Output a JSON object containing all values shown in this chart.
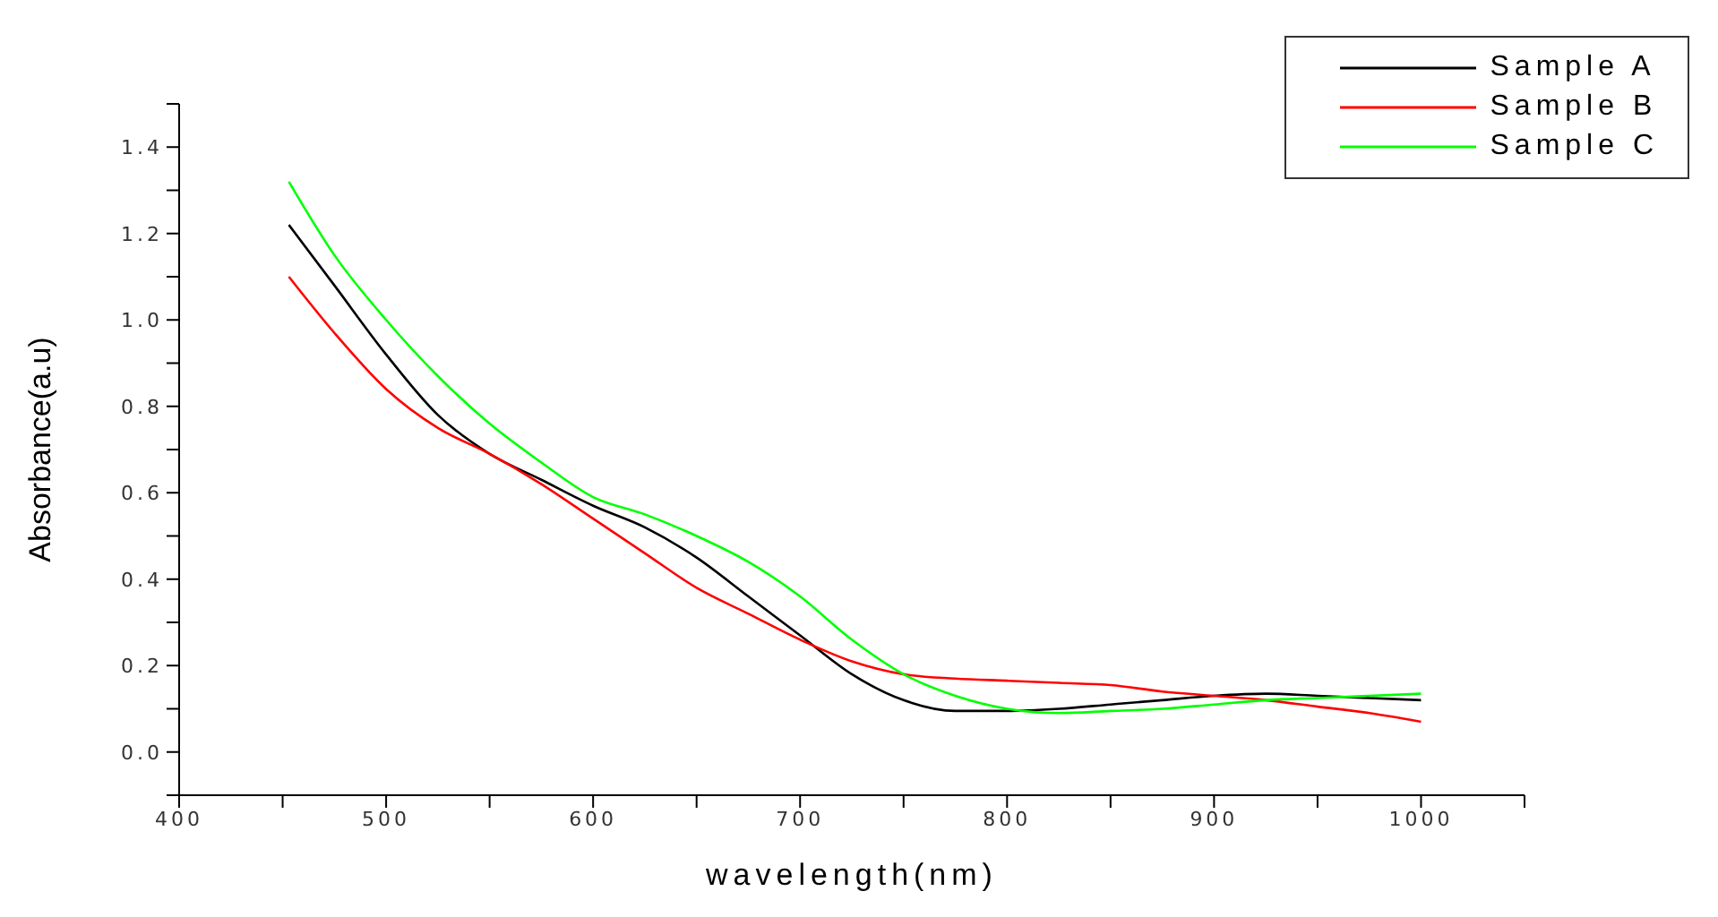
{
  "chart_data": {
    "type": "line",
    "xlabel": "wavelength(nm)",
    "ylabel": "Absorbance(a.u)",
    "x": [
      453,
      475,
      500,
      525,
      550,
      575,
      600,
      625,
      650,
      675,
      700,
      725,
      750,
      775,
      800,
      825,
      850,
      875,
      900,
      925,
      950,
      975,
      1000
    ],
    "series": [
      {
        "name": "Sample A",
        "color": "#000000",
        "values": [
          1.22,
          1.08,
          0.92,
          0.78,
          0.69,
          0.63,
          0.57,
          0.52,
          0.45,
          0.36,
          0.27,
          0.18,
          0.12,
          0.095,
          0.095,
          0.1,
          0.11,
          0.12,
          0.13,
          0.135,
          0.13,
          0.125,
          0.12
        ]
      },
      {
        "name": "Sample B",
        "color": "#ff0000",
        "values": [
          1.1,
          0.97,
          0.84,
          0.75,
          0.69,
          0.62,
          0.54,
          0.46,
          0.38,
          0.32,
          0.26,
          0.21,
          0.18,
          0.17,
          0.165,
          0.16,
          0.155,
          0.14,
          0.13,
          0.12,
          0.105,
          0.09,
          0.07
        ]
      },
      {
        "name": "Sample C",
        "color": "#00ff00",
        "values": [
          1.32,
          1.15,
          1.0,
          0.87,
          0.76,
          0.67,
          0.59,
          0.55,
          0.5,
          0.44,
          0.36,
          0.26,
          0.18,
          0.13,
          0.1,
          0.09,
          0.095,
          0.1,
          0.11,
          0.12,
          0.125,
          0.13,
          0.135
        ]
      }
    ],
    "xlim": [
      400,
      1050
    ],
    "xticks": [
      400,
      {
        "value": 450,
        "label": null
      },
      500,
      {
        "value": 550,
        "label": null
      },
      600,
      {
        "value": 650,
        "label": null
      },
      700,
      {
        "value": 750,
        "label": null
      },
      800,
      {
        "value": 850,
        "label": null
      },
      900,
      {
        "value": 950,
        "label": null
      },
      1000,
      {
        "value": 1050,
        "label": null
      }
    ],
    "ylim": [
      -0.1,
      1.5
    ],
    "yticks": [
      {
        "value": -0.1,
        "label": null
      },
      {
        "value": 0,
        "label": "0.0"
      },
      {
        "value": 0.1,
        "label": null
      },
      {
        "value": 0.2,
        "label": "0.2"
      },
      {
        "value": 0.3,
        "label": null
      },
      {
        "value": 0.4,
        "label": "0.4"
      },
      {
        "value": 0.5,
        "label": null
      },
      {
        "value": 0.6,
        "label": "0.6"
      },
      {
        "value": 0.7,
        "label": null
      },
      {
        "value": 0.8,
        "label": "0.8"
      },
      {
        "value": 0.9,
        "label": null
      },
      {
        "value": 1,
        "label": "1.0"
      },
      {
        "value": 1.1,
        "label": null
      },
      {
        "value": 1.2,
        "label": "1.2"
      },
      {
        "value": 1.3,
        "label": null
      },
      {
        "value": 1.4,
        "label": "1.4"
      },
      {
        "value": 1.5,
        "label": null
      }
    ],
    "grid": false,
    "legend": "top right",
    "marker": "none",
    "line_style": "solid"
  }
}
